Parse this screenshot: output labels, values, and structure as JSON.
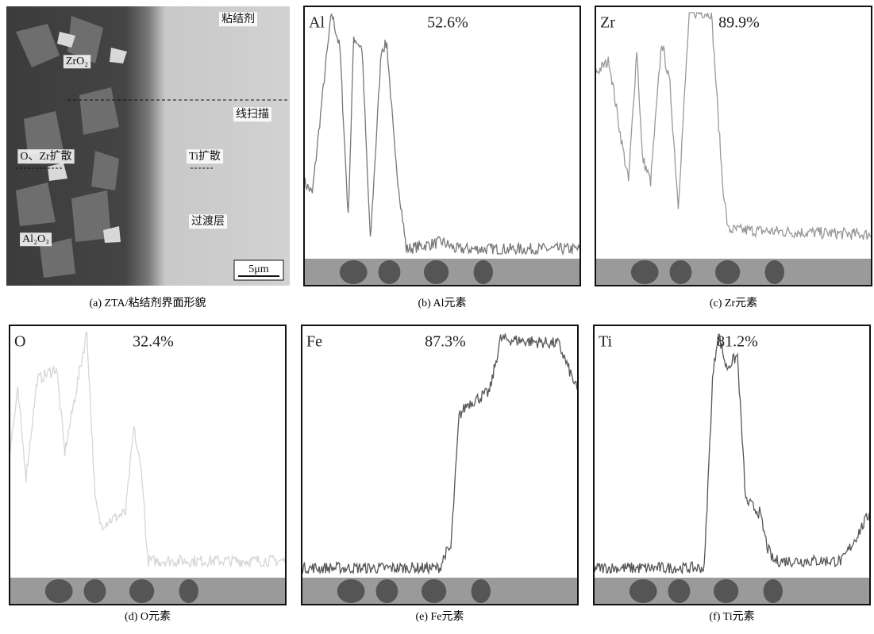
{
  "figure": {
    "sem": {
      "labels": [
        "粘结剂",
        "ZrO₂",
        "线扫描",
        "O、Zr扩散",
        "Ti扩散",
        "过渡层",
        "Al₂O₃",
        "5μm"
      ],
      "caption": "(a) ZTA/粘结剂界面形貌"
    },
    "scans": [
      {
        "element": "Al",
        "percent": "52.6%",
        "caption": "(b) Al元素"
      },
      {
        "element": "Zr",
        "percent": "89.9%",
        "caption": "(c) Zr元素"
      },
      {
        "element": "O",
        "percent": "32.4%",
        "caption": "(d) O元素"
      },
      {
        "element": "Fe",
        "percent": "87.3%",
        "caption": "(e) Fe元素"
      },
      {
        "element": "Ti",
        "percent": "81.2%",
        "caption": "(f) Ti元素"
      }
    ]
  }
}
